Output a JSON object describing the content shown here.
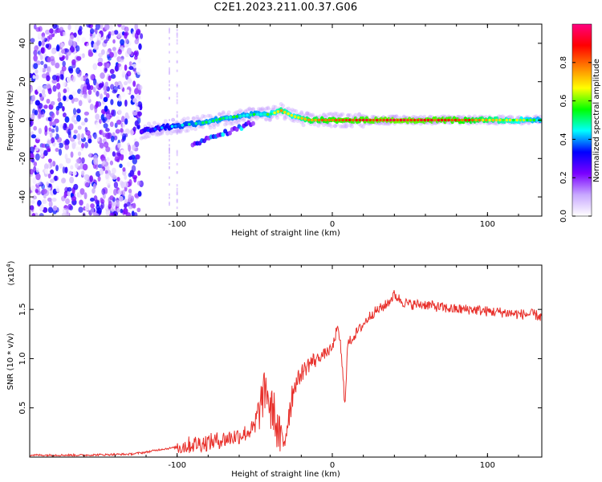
{
  "title": "C2E1.2023.211.00.37.G06",
  "colorbar": {
    "label": "Normalized spectral amplitude",
    "ticks": [
      "0.0",
      "0.2",
      "0.4",
      "0.6",
      "0.8"
    ],
    "tick_values": [
      0.0,
      0.2,
      0.4,
      0.6,
      0.8
    ],
    "range": [
      0,
      1
    ],
    "colormap": [
      "#ffffff",
      "#c8a8ff",
      "#7a00ff",
      "#0000ff",
      "#00ffff",
      "#00ff00",
      "#ffff00",
      "#ff7f00",
      "#ff0000",
      "#ff0080"
    ]
  },
  "chart_data": [
    {
      "type": "heatmap",
      "xlabel": "Height of straight line (km)",
      "ylabel": "Frequency (Hz)",
      "xlim": [
        -195,
        135
      ],
      "ylim": [
        -50,
        50
      ],
      "x_ticks": [
        "-100",
        "0",
        "100"
      ],
      "x_tick_values": [
        -100,
        0,
        100
      ],
      "y_ticks": [
        "40",
        "20",
        "0",
        "-20",
        "-40"
      ],
      "y_tick_values": [
        40,
        20,
        0,
        -20,
        -40
      ],
      "noise_region_x": [
        -195,
        -123
      ],
      "ridge": {
        "x": [
          -123,
          -110,
          -100,
          -90,
          -80,
          -70,
          -60,
          -50,
          -40,
          -33,
          -25,
          -15,
          -5,
          5,
          15,
          40,
          80,
          135
        ],
        "freq": [
          -6,
          -4,
          -3,
          -2,
          -1,
          1,
          2,
          3,
          3,
          5,
          2,
          0,
          0,
          0,
          0,
          0,
          0,
          0
        ],
        "amplitude": [
          0.25,
          0.35,
          0.4,
          0.45,
          0.5,
          0.5,
          0.5,
          0.5,
          0.55,
          0.7,
          0.6,
          0.75,
          0.8,
          0.85,
          0.85,
          0.9,
          0.85,
          0.5
        ]
      },
      "secondary_branch": {
        "x": [
          -90,
          -80,
          -70,
          -60,
          -50
        ],
        "freq": [
          -12,
          -10,
          -7,
          -4,
          -1
        ]
      }
    },
    {
      "type": "line",
      "xlabel": "Height of straight line (km)",
      "ylabel": "SNR (10 * v/v)",
      "y_multiplier_label": "(x10",
      "y_multiplier_exp": "4",
      "y_multiplier_close": ")",
      "xlim": [
        -195,
        135
      ],
      "ylim": [
        0,
        1.95
      ],
      "x_ticks": [
        "-100",
        "0",
        "100"
      ],
      "x_tick_values": [
        -100,
        0,
        100
      ],
      "y_ticks": [
        "0.5",
        "1.0",
        "1.5"
      ],
      "y_tick_values": [
        0.5,
        1.0,
        1.5
      ],
      "color": "#e8302b",
      "series": [
        {
          "x": [
            -195,
            -160,
            -130,
            -120,
            -110,
            -100,
            -90,
            -80,
            -70,
            -60,
            -55,
            -50,
            -45,
            -42,
            -40,
            -38,
            -36,
            -34,
            -32,
            -30,
            -28,
            -25,
            -20,
            -15,
            -10,
            -5,
            0,
            3,
            5,
            8,
            10,
            15,
            20,
            25,
            30,
            35,
            40,
            45,
            50,
            60,
            70,
            80,
            90,
            100,
            110,
            120,
            130,
            135
          ],
          "y": [
            0.02,
            0.02,
            0.03,
            0.05,
            0.08,
            0.1,
            0.13,
            0.15,
            0.18,
            0.22,
            0.25,
            0.3,
            0.6,
            0.7,
            0.45,
            0.5,
            0.3,
            0.2,
            0.12,
            0.25,
            0.45,
            0.7,
            0.85,
            0.95,
            1.0,
            1.05,
            1.1,
            1.3,
            1.2,
            0.55,
            1.15,
            1.25,
            1.35,
            1.45,
            1.5,
            1.55,
            1.65,
            1.58,
            1.55,
            1.55,
            1.52,
            1.5,
            1.5,
            1.48,
            1.47,
            1.45,
            1.45,
            1.42
          ]
        }
      ]
    }
  ]
}
